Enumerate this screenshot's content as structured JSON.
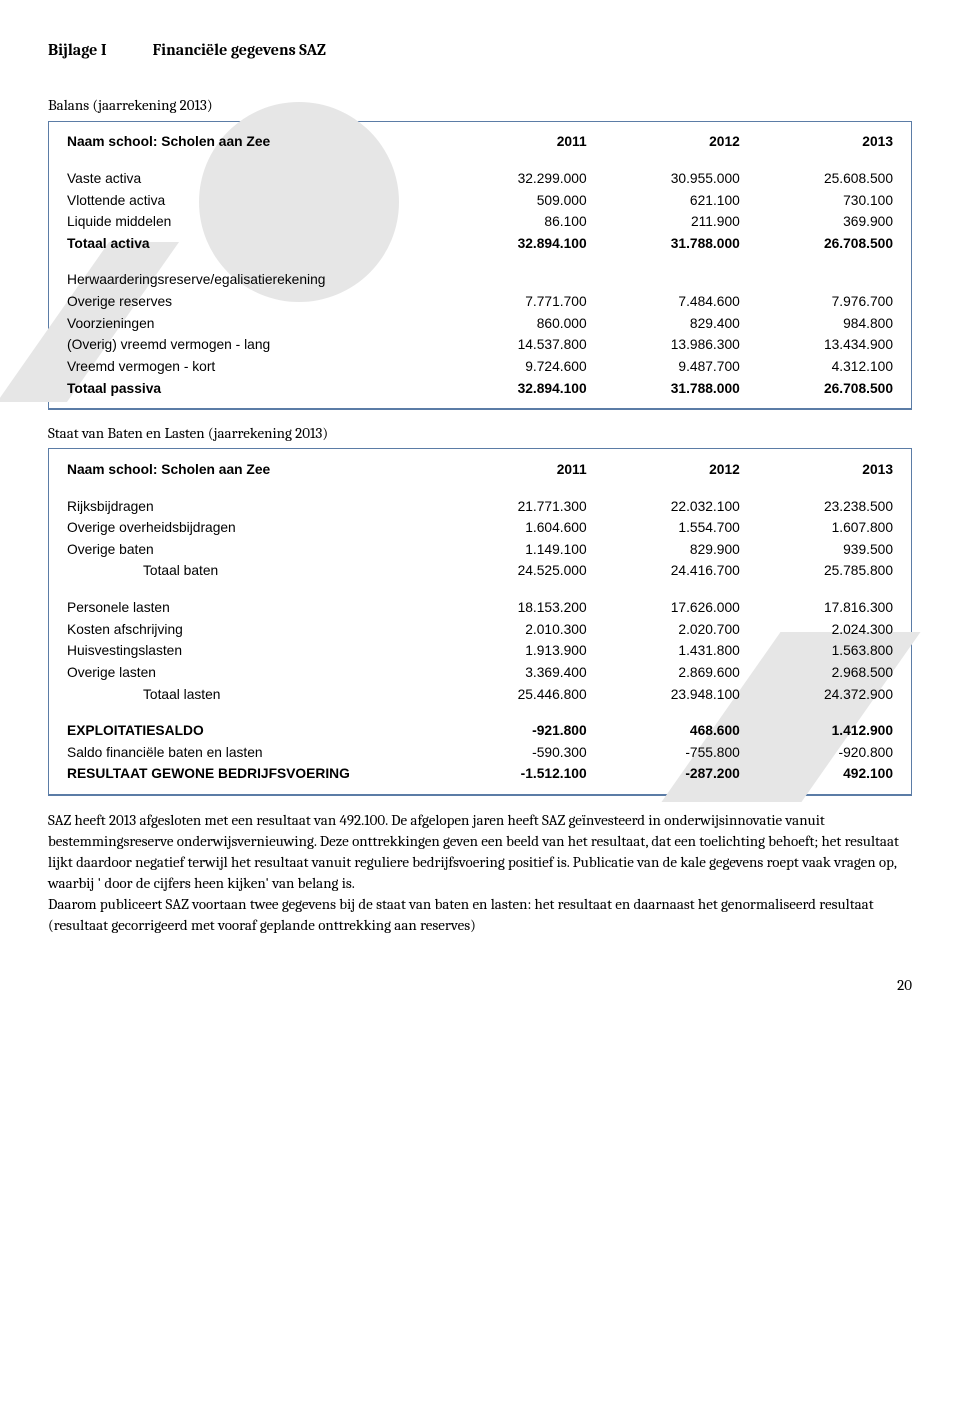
{
  "header": {
    "bijlage": "Bijlage I",
    "title": "Financiële gegevens SAZ"
  },
  "balans": {
    "heading": "Balans (jaarrekening 2013)",
    "school_label": "Naam school: Scholen aan Zee",
    "years": [
      "2011",
      "2012",
      "2013"
    ],
    "rows": [
      {
        "label": "Vaste activa",
        "vals": [
          "32.299.000",
          "30.955.000",
          "25.608.500"
        ],
        "bold": false
      },
      {
        "label": "Vlottende activa",
        "vals": [
          "509.000",
          "621.100",
          "730.100"
        ],
        "bold": false
      },
      {
        "label": "Liquide middelen",
        "vals": [
          "86.100",
          "211.900",
          "369.900"
        ],
        "bold": false
      },
      {
        "label": "Totaal activa",
        "vals": [
          "32.894.100",
          "31.788.000",
          "26.708.500"
        ],
        "bold": true
      }
    ],
    "rows2": [
      {
        "label": "Herwaarderingsreserve/egalisatierekening",
        "vals": [
          "",
          "",
          ""
        ],
        "bold": false
      },
      {
        "label": "Overige reserves",
        "vals": [
          "7.771.700",
          "7.484.600",
          "7.976.700"
        ],
        "bold": false
      },
      {
        "label": "Voorzieningen",
        "vals": [
          "860.000",
          "829.400",
          "984.800"
        ],
        "bold": false
      },
      {
        "label": "(Overig) vreemd vermogen - lang",
        "vals": [
          "14.537.800",
          "13.986.300",
          "13.434.900"
        ],
        "bold": false
      },
      {
        "label": "Vreemd vermogen - kort",
        "vals": [
          "9.724.600",
          "9.487.700",
          "4.312.100"
        ],
        "bold": false
      },
      {
        "label": "Totaal passiva",
        "vals": [
          "32.894.100",
          "31.788.000",
          "26.708.500"
        ],
        "bold": true
      }
    ]
  },
  "staat": {
    "heading": "Staat van Baten en Lasten (jaarrekening 2013)",
    "school_label": "Naam school: Scholen aan Zee",
    "years": [
      "2011",
      "2012",
      "2013"
    ],
    "baten": [
      {
        "label": "Rijksbijdragen",
        "vals": [
          "21.771.300",
          "22.032.100",
          "23.238.500"
        ],
        "bold": false
      },
      {
        "label": "Overige overheidsbijdragen",
        "vals": [
          "1.604.600",
          "1.554.700",
          "1.607.800"
        ],
        "bold": false
      },
      {
        "label": "Overige baten",
        "vals": [
          "1.149.100",
          "829.900",
          "939.500"
        ],
        "bold": false
      },
      {
        "label": "Totaal baten",
        "vals": [
          "24.525.000",
          "24.416.700",
          "25.785.800"
        ],
        "bold": false,
        "indent": true
      }
    ],
    "lasten": [
      {
        "label": "Personele lasten",
        "vals": [
          "18.153.200",
          "17.626.000",
          "17.816.300"
        ],
        "bold": false
      },
      {
        "label": "Kosten afschrijving",
        "vals": [
          "2.010.300",
          "2.020.700",
          "2.024.300"
        ],
        "bold": false
      },
      {
        "label": "Huisvestingslasten",
        "vals": [
          "1.913.900",
          "1.431.800",
          "1.563.800"
        ],
        "bold": false
      },
      {
        "label": "Overige lasten",
        "vals": [
          "3.369.400",
          "2.869.600",
          "2.968.500"
        ],
        "bold": false
      },
      {
        "label": "Totaal lasten",
        "vals": [
          "25.446.800",
          "23.948.100",
          "24.372.900"
        ],
        "bold": false,
        "indent": true
      }
    ],
    "result": [
      {
        "label": "EXPLOITATIESALDO",
        "vals": [
          "-921.800",
          "468.600",
          "1.412.900"
        ],
        "bold": true
      },
      {
        "label": "Saldo financiële baten en lasten",
        "vals": [
          "-590.300",
          "-755.800",
          "-920.800"
        ],
        "bold": false
      },
      {
        "label": "RESULTAAT GEWONE BEDRIJFSVOERING",
        "vals": [
          "-1.512.100",
          "-287.200",
          "492.100"
        ],
        "bold": true
      }
    ]
  },
  "body": {
    "text": "SAZ heeft 2013 afgesloten met een resultaat van 492.100. De afgelopen jaren heeft SAZ geïnvesteerd in onderwijsinnovatie vanuit bestemmingsreserve onderwijsvernieuwing. Deze onttrekkingen geven een beeld van het resultaat, dat een toelichting behoeft; het resultaat lijkt daardoor negatief terwijl het resultaat vanuit reguliere bedrijfsvoering positief is. Publicatie van de kale gegevens roept vaak vragen op,  waarbij ' door de cijfers heen kijken' van belang is.\nDaarom publiceert SAZ voortaan twee gegevens bij de staat van baten en lasten: het resultaat en daarnaast het genormaliseerd resultaat (resultaat gecorrigeerd met vooraf geplande onttrekking aan reserves)"
  },
  "page": "20",
  "colors": {
    "border": "#5b7ca6",
    "watermark": "#e6e6e6"
  }
}
